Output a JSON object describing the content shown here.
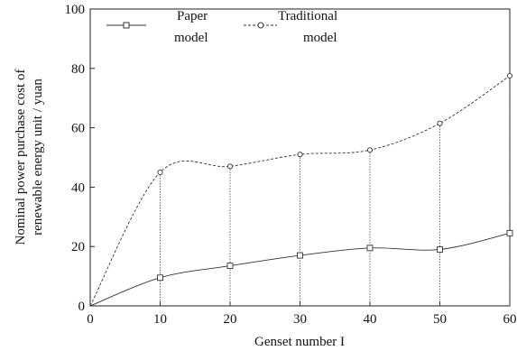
{
  "chart_data": {
    "type": "line",
    "title": "",
    "xlabel": "Genset number I",
    "ylabel_lines": [
      "Nominal power purchase cost of",
      "renewable energy unit / yuan"
    ],
    "xlim": [
      0,
      60
    ],
    "ylim": [
      0,
      100
    ],
    "x_ticks": [
      0,
      10,
      20,
      30,
      40,
      50,
      60
    ],
    "y_ticks": [
      0,
      20,
      40,
      60,
      80,
      100
    ],
    "grid": false,
    "legend_position": "top-left",
    "x": [
      0,
      10,
      20,
      30,
      40,
      50,
      60
    ],
    "series": [
      {
        "name_lines": [
          "Paper",
          "model"
        ],
        "marker": "square",
        "line_style": "solid",
        "color": "#333333",
        "values": [
          0,
          9.5,
          13.5,
          17,
          19.5,
          19,
          24.5
        ]
      },
      {
        "name_lines": [
          "Traditional",
          "model"
        ],
        "marker": "circle",
        "line_style": "dashed",
        "color": "#333333",
        "values": [
          0,
          45,
          47,
          51,
          52.5,
          61.5,
          77.5
        ]
      }
    ]
  }
}
